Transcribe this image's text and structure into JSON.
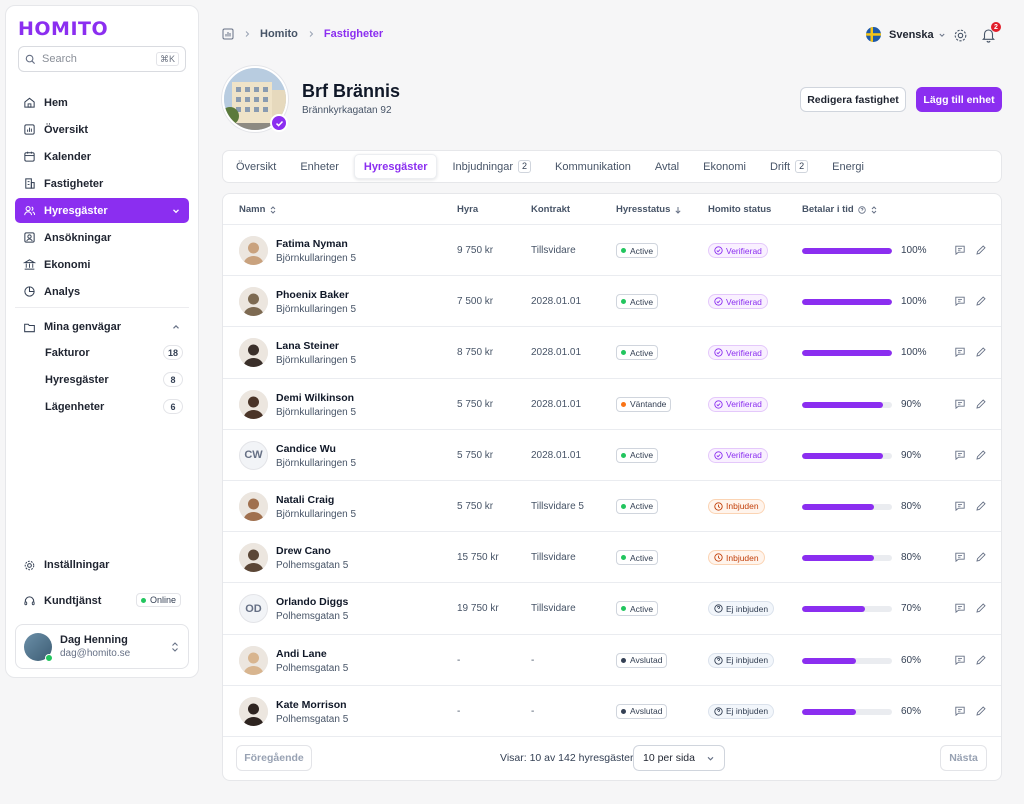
{
  "app": {
    "logo": "HOMITO"
  },
  "search": {
    "placeholder": "Search",
    "shortcut": "⌘K"
  },
  "sidebar": {
    "items": [
      {
        "label": "Hem",
        "icon": "home-icon"
      },
      {
        "label": "Översikt",
        "icon": "chart-icon"
      },
      {
        "label": "Kalender",
        "icon": "calendar-icon"
      },
      {
        "label": "Fastigheter",
        "icon": "building-icon"
      },
      {
        "label": "Hyresgäster",
        "icon": "users-icon",
        "active": true
      },
      {
        "label": "Ansökningar",
        "icon": "id-card-icon"
      },
      {
        "label": "Ekonomi",
        "icon": "bank-icon"
      },
      {
        "label": "Analys",
        "icon": "pie-icon"
      }
    ],
    "shortcuts": {
      "title": "Mina genvägar",
      "items": [
        {
          "label": "Fakturor",
          "count": "18"
        },
        {
          "label": "Hyresgäster",
          "count": "8"
        },
        {
          "label": "Lägenheter",
          "count": "6"
        }
      ]
    },
    "settings": "Inställningar",
    "support": "Kundtjänst",
    "support_status": "Online",
    "user": {
      "name": "Dag Henning",
      "email": "dag@homito.se"
    }
  },
  "breadcrumb": {
    "root": "Homito",
    "current": "Fastigheter"
  },
  "topbar": {
    "language": "Svenska",
    "notification_count": "2"
  },
  "property": {
    "name": "Brf Brännis",
    "address": "Brännkyrkagatan 92",
    "edit_button": "Redigera fastighet",
    "add_button": "Lägg till enhet"
  },
  "tabs": [
    {
      "label": "Översikt",
      "count": ""
    },
    {
      "label": "Enheter",
      "count": ""
    },
    {
      "label": "Hyresgäster",
      "count": "",
      "active": true
    },
    {
      "label": "Inbjudningar",
      "count": "2"
    },
    {
      "label": "Kommunikation",
      "count": ""
    },
    {
      "label": "Avtal",
      "count": ""
    },
    {
      "label": "Ekonomi",
      "count": ""
    },
    {
      "label": "Drift",
      "count": "2"
    },
    {
      "label": "Energi",
      "count": ""
    }
  ],
  "table": {
    "headers": {
      "name": "Namn",
      "rent": "Hyra",
      "contract": "Kontrakt",
      "rent_status": "Hyresstatus",
      "homito_status": "Homito status",
      "pays_on_time": "Betalar i tid"
    },
    "rows": [
      {
        "name": "Fatima Nyman",
        "address": "Björnkullaringen 5",
        "rent": "9 750 kr",
        "contract": "Tillsvidare",
        "status": "Active",
        "status_color": "#22c55e",
        "homito": "Verifierad",
        "homito_kind": "ver",
        "pct": "100%",
        "pct_value": 100,
        "initials": "",
        "avatar": "#c9a27e"
      },
      {
        "name": "Phoenix Baker",
        "address": "Björnkullaringen 5",
        "rent": "7 500 kr",
        "contract": "2028.01.01",
        "status": "Active",
        "status_color": "#22c55e",
        "homito": "Verifierad",
        "homito_kind": "ver",
        "pct": "100%",
        "pct_value": 100,
        "initials": "",
        "avatar": "#7d6a52"
      },
      {
        "name": "Lana Steiner",
        "address": "Björnkullaringen 5",
        "rent": "8 750 kr",
        "contract": "2028.01.01",
        "status": "Active",
        "status_color": "#22c55e",
        "homito": "Verifierad",
        "homito_kind": "ver",
        "pct": "100%",
        "pct_value": 100,
        "initials": "",
        "avatar": "#3a2f2a"
      },
      {
        "name": "Demi Wilkinson",
        "address": "Björnkullaringen 5",
        "rent": "5 750 kr",
        "contract": "2028.01.01",
        "status": "Väntande",
        "status_color": "#f97316",
        "homito": "Verifierad",
        "homito_kind": "ver",
        "pct": "90%",
        "pct_value": 90,
        "initials": "",
        "avatar": "#4a3428"
      },
      {
        "name": "Candice Wu",
        "address": "Björnkullaringen 5",
        "rent": "5 750 kr",
        "contract": "2028.01.01",
        "status": "Active",
        "status_color": "#22c55e",
        "homito": "Verifierad",
        "homito_kind": "ver",
        "pct": "90%",
        "pct_value": 90,
        "initials": "CW",
        "avatar": ""
      },
      {
        "name": "Natali Craig",
        "address": "Björnkullaringen 5",
        "rent": "5 750 kr",
        "contract": "Tillsvidare 5",
        "status": "Active",
        "status_color": "#22c55e",
        "homito": "Inbjuden",
        "homito_kind": "inb",
        "pct": "80%",
        "pct_value": 80,
        "initials": "",
        "avatar": "#a0704e"
      },
      {
        "name": "Drew Cano",
        "address": "Polhemsgatan 5",
        "rent": "15 750 kr",
        "contract": "Tillsvidare",
        "status": "Active",
        "status_color": "#22c55e",
        "homito": "Inbjuden",
        "homito_kind": "inb",
        "pct": "80%",
        "pct_value": 80,
        "initials": "",
        "avatar": "#5b4636"
      },
      {
        "name": "Orlando Diggs",
        "address": "Polhemsgatan 5",
        "rent": "19 750 kr",
        "contract": "Tillsvidare",
        "status": "Active",
        "status_color": "#22c55e",
        "homito": "Ej inbjuden",
        "homito_kind": "ej",
        "pct": "70%",
        "pct_value": 70,
        "initials": "OD",
        "avatar": ""
      },
      {
        "name": "Andi Lane",
        "address": "Polhemsgatan 5",
        "rent": "-",
        "contract": "-",
        "status": "Avslutad",
        "status_color": "#344054",
        "homito": "Ej inbjuden",
        "homito_kind": "ej",
        "pct": "60%",
        "pct_value": 60,
        "initials": "",
        "avatar": "#d8b58f"
      },
      {
        "name": "Kate Morrison",
        "address": "Polhemsgatan 5",
        "rent": "-",
        "contract": "-",
        "status": "Avslutad",
        "status_color": "#344054",
        "homito": "Ej inbjuden",
        "homito_kind": "ej",
        "pct": "60%",
        "pct_value": 60,
        "initials": "",
        "avatar": "#2e2420"
      }
    ]
  },
  "pagination": {
    "previous": "Föregående",
    "next": "Nästa",
    "showing": "Visar: 10 av 142 hyresgäster",
    "per_page": "10 per sida"
  },
  "colors": {
    "accent": "#8b2ef0"
  }
}
